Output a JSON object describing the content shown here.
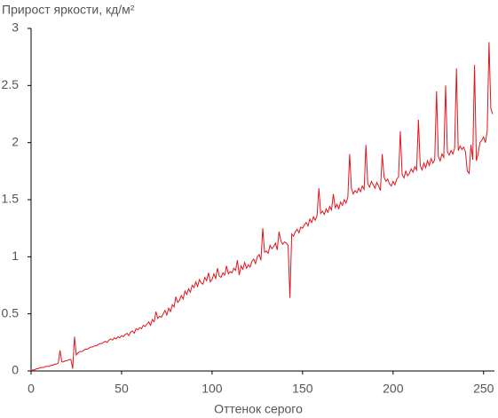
{
  "chart_data": {
    "type": "line",
    "title": "Прирост яркости, кд/м²",
    "x_label": "Оттенок серого",
    "color": "#e3141c",
    "xlim": [
      0,
      256
    ],
    "ylim": [
      0,
      3
    ],
    "xticks": [
      0,
      50,
      100,
      150,
      200,
      250
    ],
    "yticks": [
      0,
      0.5,
      1,
      1.5,
      2,
      2.5,
      3
    ],
    "x": [
      0,
      1,
      2,
      3,
      4,
      5,
      6,
      7,
      8,
      9,
      10,
      11,
      12,
      13,
      14,
      15,
      16,
      17,
      18,
      19,
      20,
      21,
      22,
      23,
      24,
      25,
      26,
      27,
      28,
      29,
      30,
      31,
      32,
      33,
      34,
      35,
      36,
      37,
      38,
      39,
      40,
      41,
      42,
      43,
      44,
      45,
      46,
      47,
      48,
      49,
      50,
      51,
      52,
      53,
      54,
      55,
      56,
      57,
      58,
      59,
      60,
      61,
      62,
      63,
      64,
      65,
      66,
      67,
      68,
      69,
      70,
      71,
      72,
      73,
      74,
      75,
      76,
      77,
      78,
      79,
      80,
      81,
      82,
      83,
      84,
      85,
      86,
      87,
      88,
      89,
      90,
      91,
      92,
      93,
      94,
      95,
      96,
      97,
      98,
      99,
      100,
      101,
      102,
      103,
      104,
      105,
      106,
      107,
      108,
      109,
      110,
      111,
      112,
      113,
      114,
      115,
      116,
      117,
      118,
      119,
      120,
      121,
      122,
      123,
      124,
      125,
      126,
      127,
      128,
      129,
      130,
      131,
      132,
      133,
      134,
      135,
      136,
      137,
      138,
      139,
      140,
      141,
      142,
      143,
      144,
      145,
      146,
      147,
      148,
      149,
      150,
      151,
      152,
      153,
      154,
      155,
      156,
      157,
      158,
      159,
      160,
      161,
      162,
      163,
      164,
      165,
      166,
      167,
      168,
      169,
      170,
      171,
      172,
      173,
      174,
      175,
      176,
      177,
      178,
      179,
      180,
      181,
      182,
      183,
      184,
      185,
      186,
      187,
      188,
      189,
      190,
      191,
      192,
      193,
      194,
      195,
      196,
      197,
      198,
      199,
      200,
      201,
      202,
      203,
      204,
      205,
      206,
      207,
      208,
      209,
      210,
      211,
      212,
      213,
      214,
      215,
      216,
      217,
      218,
      219,
      220,
      221,
      222,
      223,
      224,
      225,
      226,
      227,
      228,
      229,
      230,
      231,
      232,
      233,
      234,
      235,
      236,
      237,
      238,
      239,
      240,
      241,
      242,
      243,
      244,
      245,
      246,
      247,
      248,
      249,
      250,
      251,
      252,
      253,
      254,
      255
    ],
    "values": [
      0,
      0.01,
      0.01,
      0.02,
      0.02,
      0.03,
      0.03,
      0.03,
      0.04,
      0.04,
      0.04,
      0.05,
      0.05,
      0.06,
      0.06,
      0.07,
      0.18,
      0.08,
      0.08,
      0.09,
      0.09,
      0.1,
      0.1,
      0.02,
      0.3,
      0.14,
      0.16,
      0.17,
      0.17,
      0.18,
      0.19,
      0.19,
      0.2,
      0.21,
      0.21,
      0.22,
      0.22,
      0.23,
      0.24,
      0.24,
      0.25,
      0.26,
      0.25,
      0.27,
      0.28,
      0.27,
      0.29,
      0.28,
      0.3,
      0.29,
      0.31,
      0.3,
      0.32,
      0.33,
      0.31,
      0.34,
      0.35,
      0.33,
      0.37,
      0.36,
      0.38,
      0.37,
      0.4,
      0.39,
      0.41,
      0.43,
      0.4,
      0.45,
      0.43,
      0.52,
      0.46,
      0.48,
      0.47,
      0.5,
      0.53,
      0.49,
      0.55,
      0.52,
      0.58,
      0.56,
      0.65,
      0.6,
      0.62,
      0.66,
      0.63,
      0.7,
      0.67,
      0.72,
      0.69,
      0.75,
      0.73,
      0.78,
      0.74,
      0.8,
      0.77,
      0.76,
      0.82,
      0.79,
      0.86,
      0.78,
      0.8,
      0.85,
      0.81,
      0.9,
      0.83,
      0.82,
      0.86,
      0.84,
      0.92,
      0.85,
      0.87,
      0.86,
      0.9,
      0.88,
      0.97,
      0.84,
      0.92,
      0.89,
      0.95,
      0.9,
      0.93,
      0.91,
      0.96,
      0.98,
      0.94,
      1.0,
      1.02,
      0.97,
      1.25,
      1.04,
      1.05,
      1.03,
      1.1,
      1.07,
      1.09,
      1.12,
      1.06,
      1.22,
      1.14,
      1.11,
      1.13,
      1.12,
      1.1,
      0.64,
      1.2,
      1.18,
      1.22,
      1.24,
      1.21,
      1.26,
      1.25,
      1.28,
      1.3,
      1.27,
      1.33,
      1.3,
      1.35,
      1.32,
      1.36,
      1.6,
      1.38,
      1.4,
      1.37,
      1.42,
      1.39,
      1.44,
      1.41,
      1.55,
      1.43,
      1.46,
      1.42,
      1.48,
      1.45,
      1.5,
      1.47,
      1.52,
      1.9,
      1.6,
      1.55,
      1.58,
      1.56,
      1.6,
      1.57,
      1.62,
      1.59,
      1.98,
      1.64,
      1.61,
      1.66,
      1.63,
      1.6,
      1.65,
      1.62,
      1.58,
      1.9,
      1.7,
      1.66,
      1.68,
      1.64,
      1.62,
      1.66,
      1.63,
      1.68,
      1.7,
      2.1,
      1.72,
      1.69,
      1.75,
      1.71,
      1.73,
      1.77,
      1.74,
      1.79,
      1.76,
      2.2,
      1.8,
      1.76,
      1.82,
      1.78,
      1.84,
      1.8,
      1.86,
      1.82,
      1.85,
      2.45,
      1.88,
      1.84,
      1.9,
      1.87,
      2.5,
      1.92,
      1.89,
      1.93,
      1.9,
      1.95,
      2.65,
      1.93,
      1.97,
      1.94,
      1.96,
      1.92,
      1.75,
      1.73,
      1.98,
      1.85,
      2.68,
      1.84,
      1.9,
      2.0,
      2.02,
      2.05,
      2.0,
      2.1,
      2.88,
      2.3,
      2.25
    ]
  }
}
